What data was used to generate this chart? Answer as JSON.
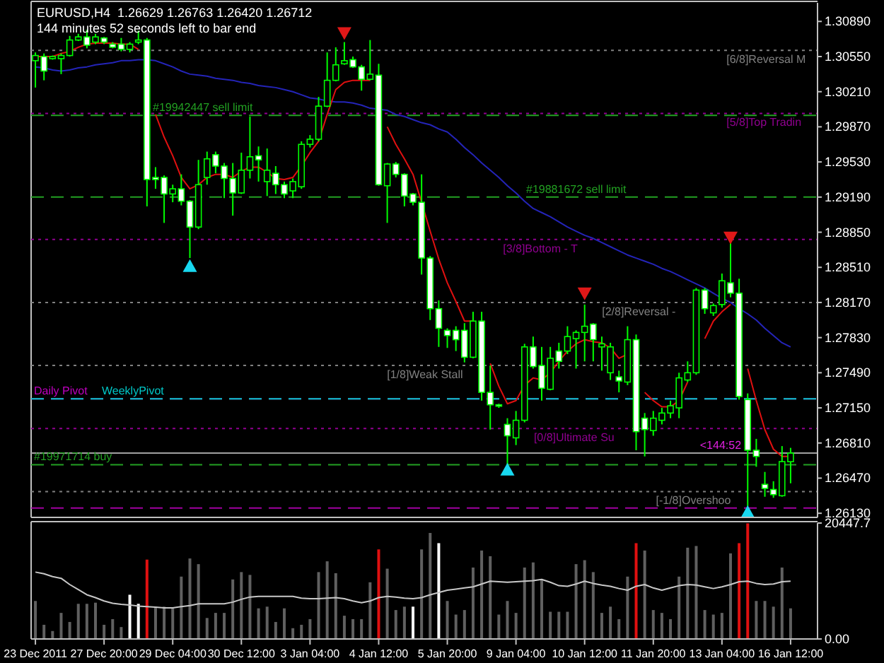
{
  "chart_data": [
    {
      "type": "candlestick",
      "title": "EURUSD,H4  1.26629 1.26763 1.26420 1.26712",
      "subtitle": "144 minutes 52 seconds left to bar end",
      "categories": [
        null,
        null,
        null,
        null,
        null,
        null,
        null,
        null,
        null,
        null,
        null,
        null,
        null,
        null,
        null,
        null,
        null,
        null,
        null,
        null,
        null,
        null,
        null,
        null,
        null,
        null,
        null,
        null,
        null,
        null,
        null,
        null,
        null,
        null,
        null,
        null,
        null,
        null,
        null,
        null,
        null,
        null,
        null,
        null,
        null,
        null,
        null,
        null,
        null,
        null,
        null,
        null,
        null,
        null,
        null,
        null,
        null,
        null,
        null,
        null,
        null,
        null,
        null,
        null,
        null,
        null,
        null,
        null,
        null,
        null,
        null,
        null,
        null,
        null,
        null,
        null,
        null,
        null,
        null,
        null,
        null,
        null,
        null,
        null,
        null,
        null,
        null,
        null,
        null
      ],
      "ohlc": [
        [
          1.3051,
          1.3059,
          1.3025,
          1.3056
        ],
        [
          1.3055,
          1.3058,
          1.3032,
          1.3041
        ],
        [
          1.3053,
          1.3056,
          1.3052,
          1.3055
        ],
        [
          1.3053,
          1.3058,
          1.3038,
          1.3056
        ],
        [
          1.3056,
          1.3075,
          1.3055,
          1.3071
        ],
        [
          1.3071,
          1.3077,
          1.307,
          1.3074
        ],
        [
          1.3074,
          1.3081,
          1.3063,
          1.3066
        ],
        [
          1.3069,
          1.3077,
          1.3067,
          1.3074
        ],
        [
          1.3073,
          1.3074,
          1.3067,
          1.3069
        ],
        [
          1.3067,
          1.3069,
          1.3063,
          1.3064
        ],
        [
          1.3067,
          1.3073,
          1.306,
          1.3062
        ],
        [
          1.3062,
          1.3069,
          1.3059,
          1.3067
        ],
        [
          1.3069,
          1.308,
          1.3067,
          1.3071
        ],
        [
          1.3071,
          1.3073,
          1.291,
          1.2936
        ],
        [
          1.2938,
          1.2948,
          1.2927,
          1.2936
        ],
        [
          1.2938,
          1.294,
          1.2894,
          1.2922
        ],
        [
          1.2922,
          1.2931,
          1.2914,
          1.2927
        ],
        [
          1.2927,
          1.2941,
          1.2911,
          1.2915
        ],
        [
          1.2915,
          1.2916,
          1.286,
          1.289
        ],
        [
          1.289,
          1.2955,
          1.2888,
          1.2931
        ],
        [
          1.2938,
          1.2963,
          1.2931,
          1.2956
        ],
        [
          1.296,
          1.2963,
          1.2942,
          1.2949
        ],
        [
          1.2949,
          1.2952,
          1.2918,
          1.2937
        ],
        [
          1.2937,
          1.2952,
          1.2901,
          1.2923
        ],
        [
          1.2923,
          1.2962,
          1.2922,
          1.2945
        ],
        [
          1.2945,
          1.2997,
          1.2937,
          1.2958
        ],
        [
          1.2959,
          1.2968,
          1.2934,
          1.2955
        ],
        [
          1.2934,
          1.2966,
          1.292,
          1.2945
        ],
        [
          1.2942,
          1.2949,
          1.2922,
          1.2931
        ],
        [
          1.2931,
          1.2934,
          1.2918,
          1.2922
        ],
        [
          1.2925,
          1.2937,
          1.2918,
          1.2934
        ],
        [
          1.2929,
          1.2973,
          1.2927,
          1.297
        ],
        [
          1.297,
          1.2979,
          1.2967,
          1.2975
        ],
        [
          1.2975,
          1.3016,
          1.2973,
          1.3007
        ],
        [
          1.3007,
          1.3059,
          1.3006,
          1.3032
        ],
        [
          1.3032,
          1.3064,
          1.3031,
          1.3047
        ],
        [
          1.3048,
          1.3069,
          1.3047,
          1.3051
        ],
        [
          1.3052,
          1.3055,
          1.3044,
          1.3045
        ],
        [
          1.3045,
          1.3047,
          1.3022,
          1.3033
        ],
        [
          1.3033,
          1.3071,
          1.3032,
          1.3038
        ],
        [
          1.3037,
          1.3048,
          1.293,
          1.2931
        ],
        [
          1.293,
          1.2952,
          1.2894,
          1.2951
        ],
        [
          1.2951,
          1.2953,
          1.2938,
          1.2941
        ],
        [
          1.2941,
          1.2942,
          1.291,
          1.292
        ],
        [
          1.2922,
          1.2923,
          1.2911,
          1.2914
        ],
        [
          1.2914,
          1.2941,
          1.2844,
          1.286
        ],
        [
          1.286,
          1.2862,
          1.28,
          1.2811
        ],
        [
          1.2811,
          1.2819,
          1.2774,
          1.2792
        ],
        [
          1.279,
          1.2792,
          1.2773,
          1.2785
        ],
        [
          1.279,
          1.2794,
          1.277,
          1.2781
        ],
        [
          1.279,
          1.2797,
          1.2759,
          1.2764
        ],
        [
          1.2764,
          1.2808,
          1.2763,
          1.2799
        ],
        [
          1.2799,
          1.2808,
          1.2722,
          1.273
        ],
        [
          1.273,
          1.2756,
          1.2694,
          1.2718
        ],
        [
          1.2718,
          1.2719,
          1.2715,
          1.2717
        ],
        [
          1.2699,
          1.2705,
          1.266,
          1.2688
        ],
        [
          1.2686,
          1.2712,
          1.2679,
          1.2703
        ],
        [
          1.2703,
          1.2777,
          1.2701,
          1.2774
        ],
        [
          1.2774,
          1.2784,
          1.2753,
          1.2755
        ],
        [
          1.2756,
          1.2774,
          1.2722,
          1.2734
        ],
        [
          1.2733,
          1.2774,
          1.2732,
          1.2763
        ],
        [
          1.277,
          1.2778,
          1.2753,
          1.276
        ],
        [
          1.277,
          1.2794,
          1.2767,
          1.2784
        ],
        [
          1.2782,
          1.279,
          1.2753,
          1.2788
        ],
        [
          1.2788,
          1.2815,
          1.276,
          1.2794
        ],
        [
          1.2796,
          1.2797,
          1.276,
          1.2781
        ],
        [
          1.2774,
          1.2784,
          1.2751,
          1.2777
        ],
        [
          1.2749,
          1.2778,
          1.2742,
          1.2774
        ],
        [
          1.2745,
          1.2751,
          1.273,
          1.2741
        ],
        [
          1.274,
          1.2794,
          1.2737,
          1.2781
        ],
        [
          1.2781,
          1.2786,
          1.2674,
          1.2692
        ],
        [
          1.2705,
          1.271,
          1.2668,
          1.2694
        ],
        [
          1.2693,
          1.2712,
          1.2688,
          1.2705
        ],
        [
          1.2703,
          1.2715,
          1.2699,
          1.271
        ],
        [
          1.271,
          1.2722,
          1.2705,
          1.2717
        ],
        [
          1.2715,
          1.2749,
          1.2705,
          1.2744
        ],
        [
          1.2742,
          1.276,
          1.274,
          1.2749
        ],
        [
          1.2749,
          1.2831,
          1.2747,
          1.2829
        ],
        [
          1.2829,
          1.2831,
          1.2806,
          1.2811
        ],
        [
          1.2807,
          1.2816,
          1.2804,
          1.2814
        ],
        [
          1.2815,
          1.2845,
          1.2812,
          1.2838
        ],
        [
          1.2836,
          1.2875,
          1.2822,
          1.2826
        ],
        [
          1.2826,
          1.284,
          1.2723,
          1.2726
        ],
        [
          1.2723,
          1.2729,
          1.262,
          1.2674
        ],
        [
          1.2674,
          1.2685,
          1.2658,
          1.2668
        ],
        [
          1.2641,
          1.2653,
          1.2629,
          1.2637
        ],
        [
          1.2636,
          1.2644,
          1.2628,
          1.2631
        ],
        [
          1.263,
          1.2678,
          1.2629,
          1.2663
        ],
        [
          1.26629,
          1.26763,
          1.2642,
          1.26712
        ]
      ],
      "series": [
        {
          "type": "line",
          "color": "#2424b8",
          "values": [
            1.3045,
            1.3044,
            1.3042,
            1.3041,
            1.3042,
            1.3044,
            1.3045,
            1.3047,
            1.3048,
            1.3049,
            1.3051,
            1.3051,
            1.3052,
            1.3052,
            1.3051,
            1.3048,
            1.3045,
            1.3041,
            1.3038,
            1.3037,
            1.3036,
            1.3034,
            1.3033,
            1.3032,
            1.303,
            1.3029,
            1.3027,
            1.3026,
            1.3025,
            1.3023,
            1.3021,
            1.3018,
            1.3015,
            1.3014,
            1.3012,
            1.3011,
            1.3011,
            1.301,
            1.3008,
            1.3005,
            1.3004,
            1.3003,
            1.2999,
            1.2997,
            1.2994,
            1.2991,
            1.2989,
            1.2985,
            1.2982,
            1.2975,
            1.2967,
            1.296,
            1.2952,
            1.2945,
            1.2938,
            1.293,
            1.2923,
            1.2915,
            1.2908,
            1.2904,
            1.29,
            1.2895,
            1.289,
            1.2886,
            1.2882,
            1.2879,
            1.2875,
            1.2871,
            1.2867,
            1.2863,
            1.286,
            1.2857,
            1.2854,
            1.285,
            1.2847,
            1.2843,
            1.2839,
            1.2835,
            1.2831,
            1.2826,
            1.2821,
            1.2817,
            1.2811,
            1.2806,
            1.28,
            1.2792,
            1.2785,
            1.2778,
            1.2774
          ]
        },
        {
          "type": "line",
          "color": "#e01010",
          "values": [
            1.3055,
            1.3055,
            1.3055,
            1.3058,
            1.306,
            1.3064,
            1.3067,
            1.3068,
            1.3068,
            1.3068,
            1.3067,
            1.3067,
            1.3062,
            null,
            1.2999,
            1.2977,
            1.2959,
            1.2938,
            1.2927,
            1.2931,
            1.2938,
            1.2941,
            1.2941,
            1.2938,
            1.2944,
            1.2948,
            1.2948,
            1.2943,
            1.2937,
            1.2936,
            1.2938,
            1.2949,
            1.2962,
            1.2973,
            1.2999,
            1.3023,
            1.303,
            1.3032,
            1.3032,
            1.3032,
            null,
            1.2987,
            1.297,
            1.2956,
            1.2941,
            1.2914,
            1.2886,
            1.2859,
            1.2836,
            1.2818,
            1.2799,
            1.2799,
            null,
            1.2758,
            1.2736,
            1.2719,
            1.2722,
            1.2737,
            1.2744,
            1.2742,
            1.2749,
            1.276,
            1.277,
            1.2777,
            1.2781,
            1.2779,
            1.2778,
            1.2773,
            1.2763,
            1.2767,
            null,
            1.273,
            1.2722,
            1.2716,
            1.2716,
            1.2722,
            1.274,
            null,
            1.2782,
            1.2799,
            1.2808,
            1.2815,
            null,
            1.2753,
            1.2722,
            1.2694,
            1.2675,
            1.2668,
            1.2668
          ]
        },
        {
          "type": "scatter",
          "color": "#e01818",
          "marker": "triangle",
          "values": [
            null,
            null,
            null,
            null,
            null,
            null,
            null,
            null,
            null,
            null,
            null,
            null,
            null,
            null,
            null,
            null,
            null,
            null,
            null,
            null,
            null,
            null,
            null,
            null,
            null,
            null,
            null,
            null,
            null,
            null,
            null,
            null,
            null,
            null,
            null,
            null,
            1.3078,
            null,
            null,
            null,
            null,
            null,
            null,
            null,
            null,
            null,
            null,
            null,
            null,
            null,
            null,
            null,
            null,
            null,
            null,
            null,
            null,
            null,
            null,
            null,
            null,
            null,
            null,
            null,
            1.2826,
            null,
            null,
            null,
            null,
            null,
            null,
            null,
            null,
            null,
            null,
            null,
            null,
            null,
            null,
            null,
            null,
            1.288,
            null,
            null,
            null,
            null,
            null,
            null,
            null
          ]
        },
        {
          "type": "scatter",
          "color": "#18d8f0",
          "marker": "triangle",
          "values": [
            null,
            null,
            null,
            null,
            null,
            null,
            null,
            null,
            null,
            null,
            null,
            null,
            null,
            null,
            null,
            null,
            null,
            null,
            1.2852,
            null,
            null,
            null,
            null,
            null,
            null,
            null,
            null,
            null,
            null,
            null,
            null,
            null,
            null,
            null,
            null,
            null,
            null,
            null,
            null,
            null,
            null,
            null,
            null,
            null,
            null,
            null,
            null,
            null,
            null,
            null,
            null,
            null,
            null,
            null,
            null,
            1.2655,
            null,
            null,
            null,
            null,
            null,
            null,
            null,
            null,
            null,
            null,
            null,
            null,
            null,
            null,
            null,
            null,
            null,
            null,
            null,
            null,
            null,
            null,
            null,
            null,
            null,
            null,
            null,
            1.2614,
            null,
            null,
            null,
            null,
            null
          ]
        }
      ],
      "ylim": [
        1.2609,
        1.3107
      ],
      "yticks": [
        {
          "value": 1.3089,
          "label": "1.30890"
        },
        {
          "value": 1.3055,
          "label": "1.30550"
        },
        {
          "value": 1.3021,
          "label": "1.30210"
        },
        {
          "value": 1.2987,
          "label": "1.29870"
        },
        {
          "value": 1.2953,
          "label": "1.29530"
        },
        {
          "value": 1.2919,
          "label": "1.29190"
        },
        {
          "value": 1.2885,
          "label": "1.28850"
        },
        {
          "value": 1.2851,
          "label": "1.28510"
        },
        {
          "value": 1.2817,
          "label": "1.28170"
        },
        {
          "value": 1.2783,
          "label": "1.27830"
        },
        {
          "value": 1.2749,
          "label": "1.27490"
        },
        {
          "value": 1.2715,
          "label": "1.27150"
        },
        {
          "value": 1.2681,
          "label": "1.26810"
        },
        {
          "value": 1.2647,
          "label": "1.26470"
        },
        {
          "value": 1.2613,
          "label": "1.26130"
        }
      ],
      "ref_lines": [
        {
          "axis": "y",
          "value": 1.3061,
          "label": "[6/8]Reversal M",
          "color": "#808080",
          "line_style": "dotted"
        },
        {
          "axis": "y",
          "value": 1.3,
          "label": "[5/8]Top Tradin",
          "color": "#900090",
          "line_style": "dotted"
        },
        {
          "axis": "y",
          "value": 1.2998,
          "label": "#19942447 sell limit",
          "color": "#22a022",
          "line_style": "dashed"
        },
        {
          "axis": "y",
          "value": 1.2919,
          "label": "#19881672 sell limit",
          "color": "#22a022",
          "line_style": "dashed"
        },
        {
          "axis": "y",
          "value": 1.2878,
          "label": "[3/8]Bottom - T",
          "color": "#900090",
          "line_style": "dotted"
        },
        {
          "axis": "y",
          "value": 1.2817,
          "label": "[2/8]Reversal -",
          "color": "#808080",
          "line_style": "dotted"
        },
        {
          "axis": "y",
          "value": 1.2756,
          "label": "[1/8]Weak Stall",
          "color": "#808080",
          "line_style": "dotted"
        },
        {
          "axis": "y",
          "value": 1.27238,
          "label": "Daily Pivot",
          "color": "#c000c0",
          "line_style": "dashed"
        },
        {
          "axis": "y",
          "value": 1.27238,
          "label": "WeeklyPivot",
          "color": "#00c8c8",
          "line_style": "dashed"
        },
        {
          "axis": "y",
          "value": 1.2695,
          "label": "[0/8]Ultimate Su",
          "color": "#900090",
          "line_style": "dotted"
        },
        {
          "axis": "y",
          "value": 1.26712,
          "color": "#a0a0a0",
          "line_style": "solid"
        },
        {
          "axis": "y",
          "value": 1.266,
          "label": "#19971714 buy",
          "color": "#22a022",
          "line_style": "dashed"
        },
        {
          "axis": "y",
          "value": 1.2634,
          "label": "[-1/8]Overshoo",
          "color": "#808080",
          "line_style": "dotted"
        },
        {
          "axis": "y",
          "value": 1.2618,
          "color": "#a000a0",
          "line_style": "dashed"
        }
      ],
      "annotations": [
        "<144:52"
      ],
      "tick_labels": "y"
    },
    {
      "type": "bar",
      "categories": [
        "23 Dec 2011",
        null,
        null,
        null,
        null,
        null,
        null,
        null,
        "27 Dec 20:00",
        null,
        null,
        null,
        null,
        null,
        null,
        null,
        "29 Dec 04:00",
        null,
        null,
        null,
        null,
        null,
        null,
        null,
        "30 Dec 12:00",
        null,
        null,
        null,
        null,
        null,
        null,
        null,
        "3 Jan 04:00",
        null,
        null,
        null,
        null,
        null,
        null,
        null,
        "4 Jan 12:00",
        null,
        null,
        null,
        null,
        null,
        null,
        null,
        "5 Jan 20:00",
        null,
        null,
        null,
        null,
        null,
        null,
        null,
        "9 Jan 04:00",
        null,
        null,
        null,
        null,
        null,
        null,
        null,
        "10 Jan 12:00",
        null,
        null,
        null,
        null,
        null,
        null,
        null,
        "11 Jan 20:00",
        null,
        null,
        null,
        null,
        null,
        null,
        null,
        "13 Jan 04:00",
        null,
        null,
        null,
        null,
        null,
        null,
        null,
        "16 Jan 12:00"
      ],
      "series": [
        {
          "type": "bar",
          "colors": [
            "#606060",
            "#606060",
            "#606060",
            "#606060",
            "#606060",
            "#606060",
            "#606060",
            "#606060",
            "#606060",
            "#606060",
            "#606060",
            "#ffffff",
            "#ffffff",
            "#e01010",
            "#606060",
            "#606060",
            "#606060",
            "#606060",
            "#606060",
            "#606060",
            "#606060",
            "#606060",
            "#606060",
            "#606060",
            "#606060",
            "#606060",
            "#606060",
            "#606060",
            "#606060",
            "#606060",
            "#606060",
            "#606060",
            "#606060",
            "#606060",
            "#606060",
            "#606060",
            "#606060",
            "#606060",
            "#606060",
            "#606060",
            "#e01010",
            "#606060",
            "#606060",
            "#606060",
            "#ffffff",
            "#606060",
            "#606060",
            "#ffffff",
            "#606060",
            "#606060",
            "#606060",
            "#606060",
            "#606060",
            "#606060",
            "#606060",
            "#606060",
            "#606060",
            "#606060",
            "#606060",
            "#606060",
            "#606060",
            "#606060",
            "#606060",
            "#606060",
            "#606060",
            "#606060",
            "#606060",
            "#606060",
            "#606060",
            "#606060",
            "#e01010",
            "#606060",
            "#606060",
            "#606060",
            "#606060",
            "#606060",
            "#606060",
            "#606060",
            "#606060",
            "#606060",
            "#606060",
            "#606060",
            "#e01010",
            "#e01010",
            "#606060",
            "#606060",
            "#606060",
            "#606060",
            "#606060"
          ],
          "values": [
            6700,
            2500,
            1400,
            4600,
            3000,
            6200,
            6200,
            6400,
            2500,
            3500,
            2100,
            7800,
            6200,
            14000,
            5700,
            5700,
            5400,
            11000,
            14200,
            13200,
            3700,
            4600,
            4600,
            10500,
            11800,
            11300,
            5400,
            5700,
            3000,
            5400,
            1900,
            2500,
            3500,
            11800,
            13700,
            11600,
            4100,
            3500,
            3500,
            10000,
            15800,
            12400,
            5100,
            5700,
            5700,
            15800,
            18700,
            16900,
            6700,
            4300,
            5100,
            12600,
            15600,
            14600,
            4300,
            6700,
            4600,
            12600,
            13500,
            10500,
            4800,
            4800,
            4800,
            13200,
            13900,
            11800,
            4600,
            5700,
            3500,
            11000,
            16900,
            15600,
            5100,
            4600,
            3500,
            11000,
            16100,
            16400,
            5100,
            4300,
            4600,
            15100,
            16900,
            20400,
            6700,
            6700,
            5700,
            12600,
            5400
          ]
        },
        {
          "type": "line",
          "color": "#c8c8c8",
          "values": [
            11800,
            11500,
            11000,
            10700,
            9600,
            8700,
            7800,
            7300,
            6700,
            6300,
            6100,
            6000,
            5800,
            5700,
            5600,
            5500,
            5500,
            5700,
            5900,
            6200,
            6200,
            6200,
            6200,
            6500,
            7000,
            7400,
            7500,
            7500,
            7500,
            7500,
            7500,
            7200,
            7100,
            7100,
            7200,
            7300,
            7100,
            6700,
            6400,
            6700,
            7300,
            7500,
            7400,
            7200,
            7100,
            7300,
            7800,
            8200,
            8600,
            8800,
            9000,
            9200,
            9700,
            10200,
            10100,
            10000,
            10100,
            10200,
            10300,
            10500,
            10000,
            9400,
            9300,
            9700,
            10200,
            9800,
            9500,
            9300,
            8900,
            8600,
            9300,
            9600,
            9000,
            8600,
            9000,
            9400,
            9600,
            9500,
            9200,
            8900,
            9200,
            9600,
            10100,
            10200,
            9800,
            9600,
            9700,
            10100,
            10200
          ]
        }
      ],
      "ylim": [
        0,
        20447.7
      ],
      "yticks": [
        {
          "value": 0,
          "label": "0.00"
        },
        20447.7
      ]
    }
  ]
}
